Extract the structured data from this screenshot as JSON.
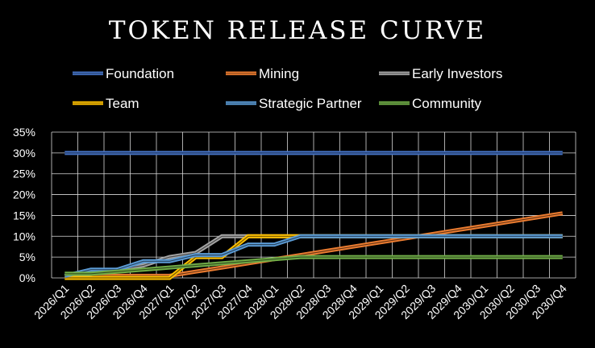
{
  "chart_data": {
    "type": "line",
    "title": "TOKEN RELEASE CURVE",
    "xlabel": "",
    "ylabel": "",
    "ylim": [
      0,
      0.35
    ],
    "yticks": [
      "0%",
      "5%",
      "10%",
      "15%",
      "20%",
      "25%",
      "30%",
      "35%"
    ],
    "grid": true,
    "legend_position": "top",
    "categories": [
      "2026/Q1",
      "2026/Q2",
      "2026/Q3",
      "2026/Q4",
      "2027/Q1",
      "2027/Q2",
      "2027/Q3",
      "2027/Q4",
      "2028/Q1",
      "2028/Q2",
      "2028/Q3",
      "2028/Q4",
      "2029/Q1",
      "2029/Q2",
      "2029/Q3",
      "2029/Q4",
      "2030/Q1",
      "2030/Q2",
      "2030/Q3",
      "2030/Q4"
    ],
    "series": [
      {
        "name": "Foundation",
        "color": "#4472c4",
        "values": [
          0.3,
          0.3,
          0.3,
          0.3,
          0.3,
          0.3,
          0.3,
          0.3,
          0.3,
          0.3,
          0.3,
          0.3,
          0.3,
          0.3,
          0.3,
          0.3,
          0.3,
          0.3,
          0.3,
          0.3
        ]
      },
      {
        "name": "Mining",
        "color": "#ed7d31",
        "values": [
          0.005,
          0.005,
          0.005,
          0.005,
          0.005,
          0.015,
          0.025,
          0.035,
          0.045,
          0.055,
          0.065,
          0.075,
          0.085,
          0.095,
          0.105,
          0.115,
          0.125,
          0.135,
          0.145,
          0.155
        ]
      },
      {
        "name": "Early Investors",
        "color": "#a5a5a5",
        "values": [
          0.005,
          0.01,
          0.02,
          0.03,
          0.05,
          0.06,
          0.1,
          0.1,
          0.1,
          0.1,
          0.1,
          0.1,
          0.1,
          0.1,
          0.1,
          0.1,
          0.1,
          0.1,
          0.1,
          0.1
        ]
      },
      {
        "name": "Team",
        "color": "#ffc000",
        "values": [
          0.0,
          0.0,
          0.0,
          0.0,
          0.0,
          0.05,
          0.05,
          0.1,
          0.1,
          0.1,
          0.1,
          0.1,
          0.1,
          0.1,
          0.1,
          0.1,
          0.1,
          0.1,
          0.1,
          0.1
        ]
      },
      {
        "name": "Strategic Partner",
        "color": "#5b9bd5",
        "values": [
          0.005,
          0.02,
          0.02,
          0.04,
          0.04,
          0.055,
          0.055,
          0.08,
          0.08,
          0.1,
          0.1,
          0.1,
          0.1,
          0.1,
          0.1,
          0.1,
          0.1,
          0.1,
          0.1,
          0.1
        ]
      },
      {
        "name": "Community",
        "color": "#70ad47",
        "values": [
          0.01,
          0.01,
          0.015,
          0.02,
          0.025,
          0.03,
          0.035,
          0.04,
          0.045,
          0.05,
          0.05,
          0.05,
          0.05,
          0.05,
          0.05,
          0.05,
          0.05,
          0.05,
          0.05,
          0.05
        ]
      }
    ]
  }
}
